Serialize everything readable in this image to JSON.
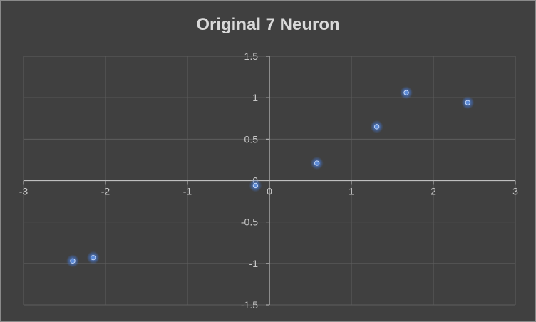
{
  "chart_data": {
    "type": "scatter",
    "title": "Original 7 Neuron",
    "xlabel": "",
    "ylabel": "",
    "xlim": [
      -3,
      3
    ],
    "ylim": [
      -1.5,
      1.5
    ],
    "grid": true,
    "x_ticks": [
      -3,
      -2,
      -1,
      0,
      1,
      2,
      3
    ],
    "y_ticks": [
      -1.5,
      -1,
      -0.5,
      0,
      0.5,
      1,
      1.5
    ],
    "x_tick_labels": [
      "-3",
      "-2",
      "-1",
      "0",
      "1",
      "2",
      "3"
    ],
    "y_tick_labels": [
      "-1.5",
      "-1",
      "-0.5",
      "0",
      "0.5",
      "1",
      "1.5"
    ],
    "points": [
      {
        "x": -2.4,
        "y": -0.97
      },
      {
        "x": -2.15,
        "y": -0.93
      },
      {
        "x": -0.17,
        "y": -0.06
      },
      {
        "x": 0.58,
        "y": 0.21
      },
      {
        "x": 1.31,
        "y": 0.65
      },
      {
        "x": 1.67,
        "y": 1.06
      },
      {
        "x": 2.42,
        "y": 0.94
      }
    ],
    "colors": {
      "background": "#404040",
      "grid": "#5e5e5e",
      "axis": "#bfbfbf",
      "marker": "#4472c4",
      "marker_glow": "#5b8bd9",
      "text": "#d9d9d9"
    }
  }
}
